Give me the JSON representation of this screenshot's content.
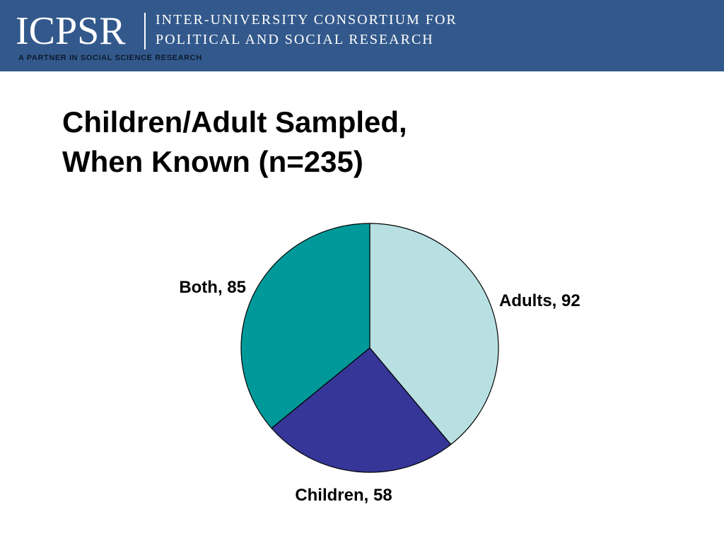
{
  "header": {
    "logo_text": "ICPSR",
    "org_line1": "INTER-UNIVERSITY CONSORTIUM FOR",
    "org_line2": "POLITICAL AND SOCIAL RESEARCH",
    "tagline": "A PARTNER IN SOCIAL SCIENCE RESEARCH",
    "banner_color": "#33598c"
  },
  "slide": {
    "title_line1": "Children/Adult Sampled,",
    "title_line2": "When Known (n=235)"
  },
  "chart_data": {
    "type": "pie",
    "title": "Children/Adult Sampled, When Known (n=235)",
    "total": 235,
    "start_angle_deg": 0,
    "direction": "clockwise",
    "legend": "none",
    "slices": [
      {
        "label": "Adults",
        "value": 92,
        "display": "Adults, 92",
        "color": "#b8e0e3"
      },
      {
        "label": "Children",
        "value": 58,
        "display": "Children, 58",
        "color": "#363698"
      },
      {
        "label": "Both",
        "value": 85,
        "display": "Both, 85",
        "color": "#009999"
      }
    ]
  }
}
